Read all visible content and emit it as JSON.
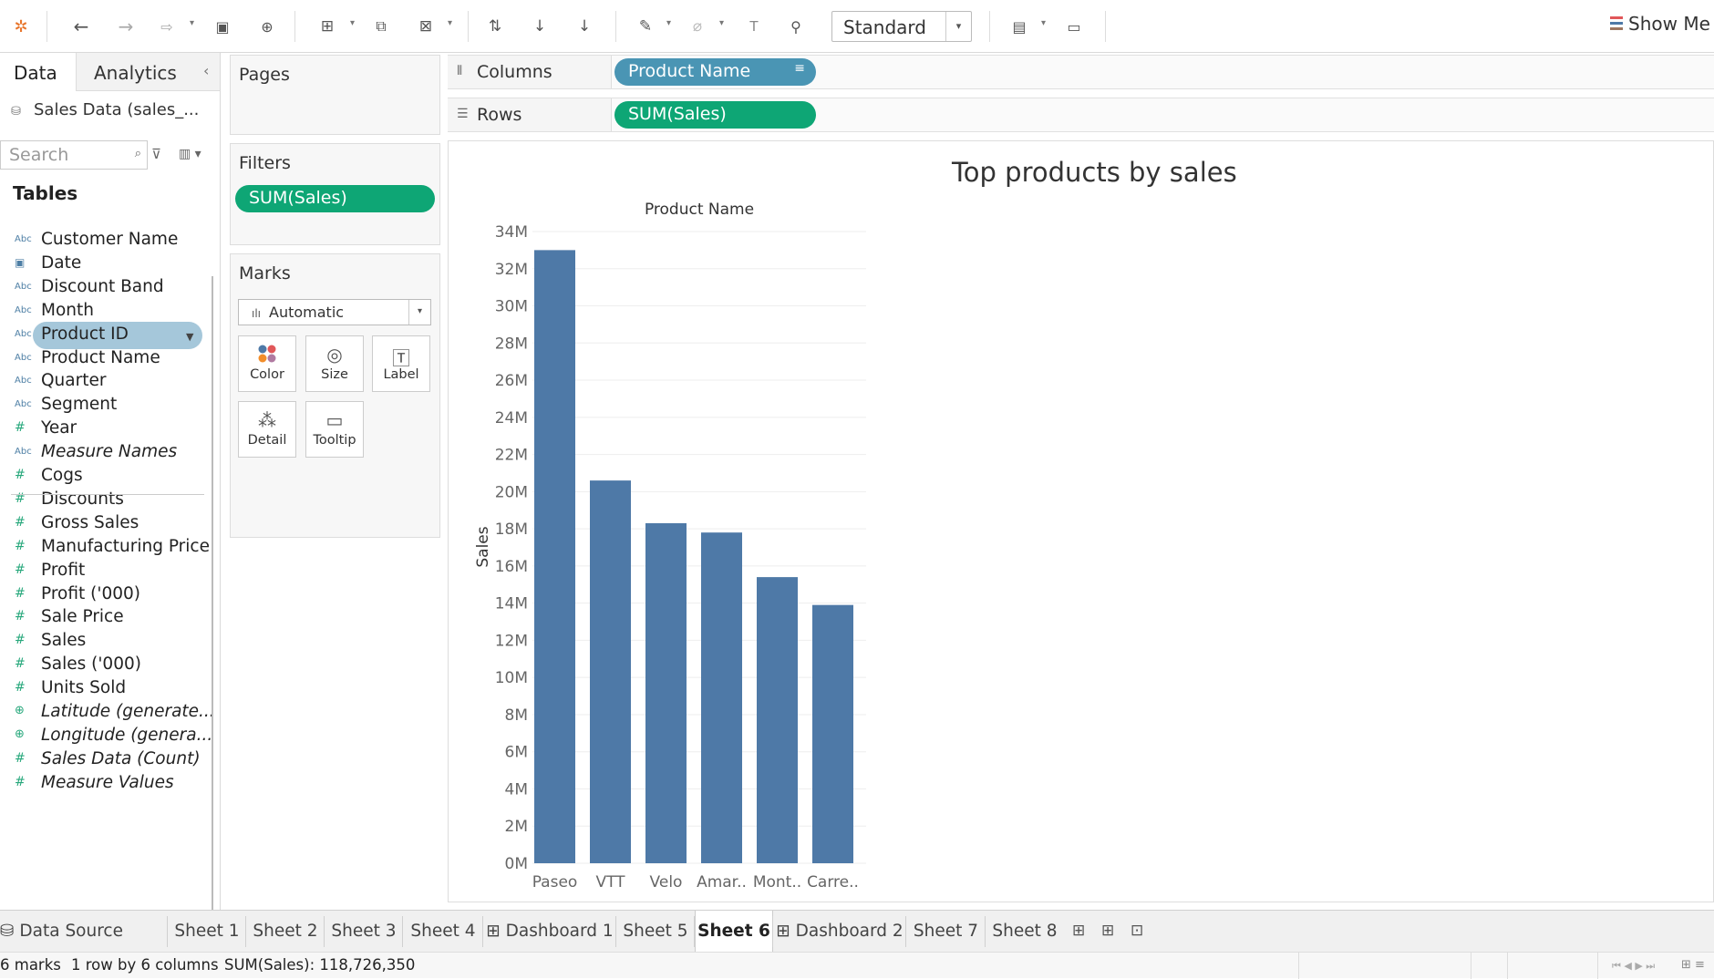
{
  "toolbar": {
    "view_mode": "Standard",
    "show_me_label": "Show Me"
  },
  "data_pane": {
    "tab_data": "Data",
    "tab_analytics": "Analytics",
    "datasource_name": "Sales Data (sales_...",
    "search_placeholder": "Search",
    "tables_heading": "Tables",
    "dimensions": [
      {
        "name": "Customer Name",
        "type": "string"
      },
      {
        "name": "Date",
        "type": "date"
      },
      {
        "name": "Discount Band",
        "type": "string"
      },
      {
        "name": "Month",
        "type": "string"
      },
      {
        "name": "Product ID",
        "type": "string",
        "selected": true
      },
      {
        "name": "Product Name",
        "type": "string"
      },
      {
        "name": "Quarter",
        "type": "string"
      },
      {
        "name": "Segment",
        "type": "string"
      },
      {
        "name": "Year",
        "type": "number"
      },
      {
        "name": "Measure Names",
        "type": "string",
        "italic": true
      }
    ],
    "measures": [
      {
        "name": "Cogs",
        "type": "number"
      },
      {
        "name": "Discounts",
        "type": "number"
      },
      {
        "name": "Gross Sales",
        "type": "number"
      },
      {
        "name": "Manufacturing Price",
        "type": "number"
      },
      {
        "name": "Profit",
        "type": "number"
      },
      {
        "name": "Profit ('000)",
        "type": "number"
      },
      {
        "name": "Sale Price",
        "type": "number"
      },
      {
        "name": "Sales",
        "type": "number"
      },
      {
        "name": "Sales ('000)",
        "type": "number"
      },
      {
        "name": "Units Sold",
        "type": "number"
      },
      {
        "name": "Latitude (generate...",
        "type": "geo",
        "italic": true
      },
      {
        "name": "Longitude (genera...",
        "type": "geo",
        "italic": true
      },
      {
        "name": "Sales Data (Count)",
        "type": "number",
        "italic": true
      },
      {
        "name": "Measure Values",
        "type": "number",
        "italic": true
      }
    ]
  },
  "pages_card": {
    "title": "Pages"
  },
  "filters_card": {
    "title": "Filters",
    "pill": "SUM(Sales)"
  },
  "marks_card": {
    "title": "Marks",
    "mark_type": "Automatic",
    "buttons": [
      "Color",
      "Size",
      "Label",
      "Detail",
      "Tooltip"
    ]
  },
  "shelves": {
    "columns_label": "Columns",
    "columns_pill": "Product Name",
    "rows_label": "Rows",
    "rows_pill": "SUM(Sales)"
  },
  "colors": {
    "bar": "#4e79a7",
    "green_pill": "#0ea675",
    "blue_pill": "#4a95b4"
  },
  "chart_data": {
    "type": "bar",
    "title": "Top products by sales",
    "header": "Product Name",
    "ylabel": "Sales",
    "categories": [
      "Paseo",
      "VTT",
      "Velo",
      "Amar..",
      "Mont..",
      "Carre.."
    ],
    "values": [
      33000000,
      20600000,
      18300000,
      17800000,
      15400000,
      13900000
    ],
    "ylim": [
      0,
      34000000
    ],
    "yticks": [
      "0M",
      "2M",
      "4M",
      "6M",
      "8M",
      "10M",
      "12M",
      "14M",
      "16M",
      "18M",
      "20M",
      "22M",
      "24M",
      "26M",
      "28M",
      "30M",
      "32M",
      "34M"
    ],
    "grid": true
  },
  "sheet_tabs": [
    "Data Source",
    "Sheet 1",
    "Sheet 2",
    "Sheet 3",
    "Sheet 4",
    "Dashboard 1",
    "Sheet 5",
    "Sheet 6",
    "Dashboard 2",
    "Sheet 7",
    "Sheet 8"
  ],
  "active_tab": "Sheet 6",
  "status": {
    "marks": "6 marks",
    "dims": "1 row by 6 columns",
    "sum": "SUM(Sales): 118,726,350"
  }
}
